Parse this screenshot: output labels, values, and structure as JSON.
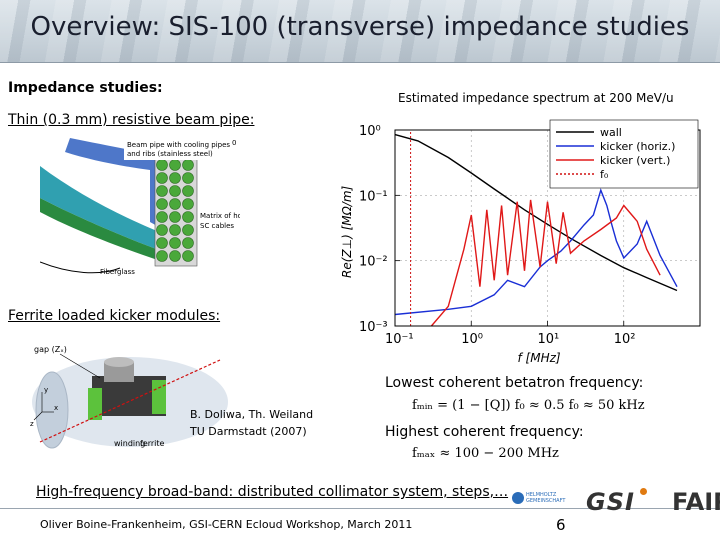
{
  "slide": {
    "title": "Overview: SIS-100 (transverse) impedance studies"
  },
  "left": {
    "heading": "Impedance studies:",
    "beam_pipe_label": "Thin (0.3 mm) resistive beam pipe:",
    "pipe_figure": {
      "annotation1": "Beam pipe with cooling pipes",
      "annotation2": "and ribs (stainless steel)",
      "annotation3": "Matrix of hollow",
      "annotation4": "SC cables",
      "annotation5": "Fiberglass",
      "axis_mark": "0"
    },
    "kicker_label": "Ferrite loaded kicker modules:",
    "kicker_figure": {
      "gap_label": "gap (Zₓ)",
      "winding_label": "winding",
      "ferrite_label": "ferrite",
      "axis_x": "x",
      "axis_y": "y",
      "axis_z": "z"
    },
    "credit_line1": "B. Doliwa, Th. Weiland",
    "credit_line2": "TU Darmstadt (2007)"
  },
  "right": {
    "chart_title": "Estimated impedance spectrum at 200 MeV/u",
    "lowest_label": "Lowest coherent betatron frequency:",
    "lowest_formula": "fₘᵢₙ = (1 − [Q]) f₀ ≈ 0.5 f₀ ≈ 50 kHz",
    "highest_label": "Highest coherent frequency:",
    "highest_formula": "fₘₐₓ ≈ 100 − 200 MHz"
  },
  "bottom": {
    "broadband": "High-frequency broad-band: distributed collimator system, steps,…",
    "footer": "Oliver Boine-Frankenheim,  GSI-CERN Ecloud Workshop, March 2011",
    "page_number": "6",
    "logo_hgf_line1": "HELMHOLTZ",
    "logo_hgf_line2": "GEMEINSCHAFT",
    "logo_gsi": "GSI",
    "logo_fair": "FAIR"
  },
  "chart_data": {
    "type": "line",
    "scale": "log-log",
    "xlabel": "f [MHz]",
    "ylabel": "Re(Z⊥) [MΩ/m]",
    "xlim": [
      0.1,
      1000
    ],
    "ylim": [
      0.001,
      1
    ],
    "xticks": [
      "10⁻¹",
      "10⁰",
      "10¹",
      "10²"
    ],
    "yticks": [
      "10⁰",
      "10⁻¹",
      "10⁻²",
      "10⁻³"
    ],
    "legend_position": "top-right",
    "series": [
      {
        "name": "wall",
        "color": "#000000",
        "x": [
          0.1,
          0.2,
          0.5,
          1,
          2,
          5,
          10,
          20,
          50,
          100,
          200,
          500
        ],
        "y": [
          0.85,
          0.68,
          0.38,
          0.22,
          0.125,
          0.06,
          0.036,
          0.022,
          0.012,
          0.0078,
          0.0055,
          0.0035
        ]
      },
      {
        "name": "kicker (horiz.)",
        "color": "#1a2fd6",
        "x": [
          0.1,
          0.5,
          1,
          2,
          3,
          5,
          8,
          10,
          15,
          20,
          30,
          40,
          50,
          60,
          70,
          80,
          100,
          150,
          200,
          300,
          500
        ],
        "y": [
          0.0015,
          0.0018,
          0.002,
          0.003,
          0.005,
          0.004,
          0.008,
          0.01,
          0.014,
          0.02,
          0.035,
          0.05,
          0.12,
          0.07,
          0.035,
          0.02,
          0.011,
          0.018,
          0.04,
          0.012,
          0.004
        ]
      },
      {
        "name": "kicker (vert.)",
        "color": "#e01818",
        "x": [
          0.3,
          0.5,
          0.8,
          1,
          1.3,
          1.6,
          2,
          2.5,
          3,
          4,
          5,
          6,
          8,
          10,
          13,
          16,
          20,
          30,
          50,
          80,
          100,
          150,
          200,
          300
        ],
        "y": [
          0.001,
          0.002,
          0.015,
          0.05,
          0.004,
          0.06,
          0.005,
          0.07,
          0.006,
          0.08,
          0.007,
          0.085,
          0.008,
          0.08,
          0.009,
          0.055,
          0.013,
          0.02,
          0.03,
          0.045,
          0.07,
          0.04,
          0.015,
          0.006
        ]
      },
      {
        "name": "f₀",
        "color": "#d01010",
        "style": "dotted vertical",
        "x": [
          0.16,
          0.16
        ],
        "y": [
          0.001,
          1
        ]
      }
    ]
  }
}
